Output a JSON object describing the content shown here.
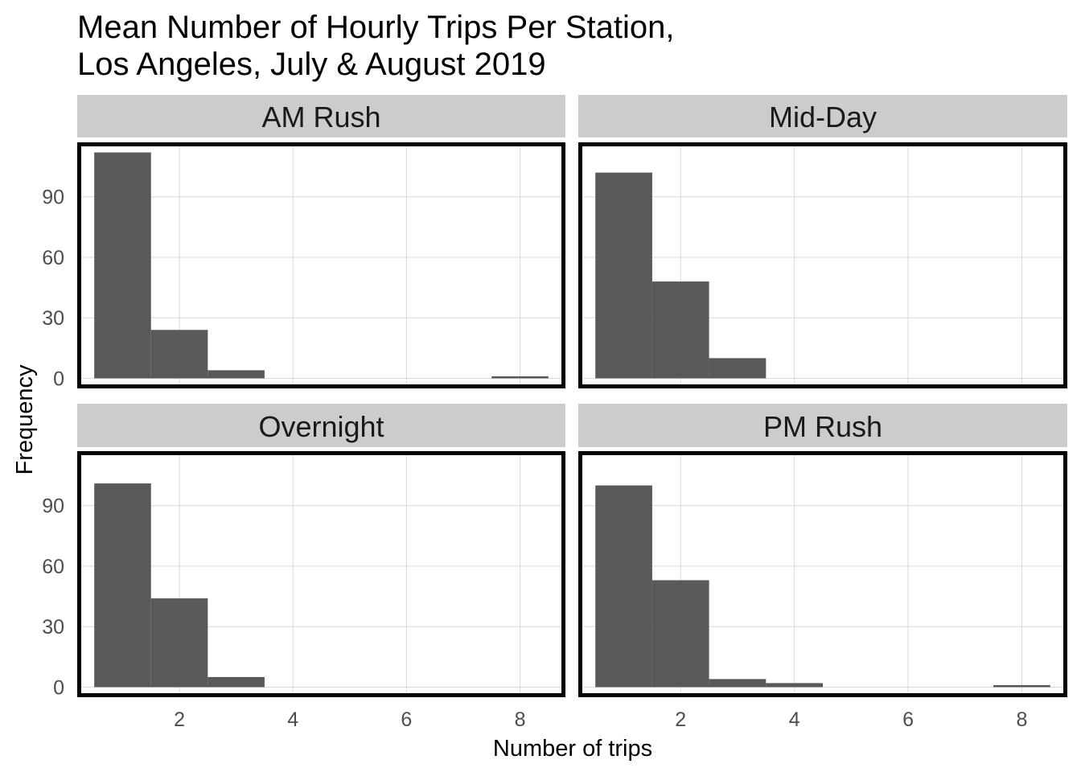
{
  "title_lines": [
    "Mean Number of Hourly Trips Per Station,",
    "Los Angeles, July & August 2019"
  ],
  "chart_data": {
    "type": "bar",
    "subtype": "faceted histogram",
    "xlabel": "Number of trips",
    "ylabel": "Frequency",
    "xlim": [
      0.2,
      8.8
    ],
    "ylim": [
      -5,
      117
    ],
    "x_ticks": [
      2,
      4,
      6,
      8
    ],
    "y_ticks": [
      0,
      30,
      60,
      90
    ],
    "bin_width": 1,
    "bar_color": "#595959",
    "strip_color": "#cccccc",
    "grid": true,
    "facets": [
      {
        "panel": "AM Rush",
        "bins": [
          {
            "x": 1,
            "count": 112
          },
          {
            "x": 2,
            "count": 24
          },
          {
            "x": 3,
            "count": 4
          },
          {
            "x": 8,
            "count": 1
          }
        ]
      },
      {
        "panel": "Mid-Day",
        "bins": [
          {
            "x": 1,
            "count": 102
          },
          {
            "x": 2,
            "count": 48
          },
          {
            "x": 3,
            "count": 10
          }
        ]
      },
      {
        "panel": "Overnight",
        "bins": [
          {
            "x": 1,
            "count": 101
          },
          {
            "x": 2,
            "count": 44
          },
          {
            "x": 3,
            "count": 5
          }
        ]
      },
      {
        "panel": "PM Rush",
        "bins": [
          {
            "x": 1,
            "count": 100
          },
          {
            "x": 2,
            "count": 53
          },
          {
            "x": 3,
            "count": 4
          },
          {
            "x": 4,
            "count": 2
          },
          {
            "x": 8,
            "count": 1
          }
        ]
      }
    ]
  }
}
